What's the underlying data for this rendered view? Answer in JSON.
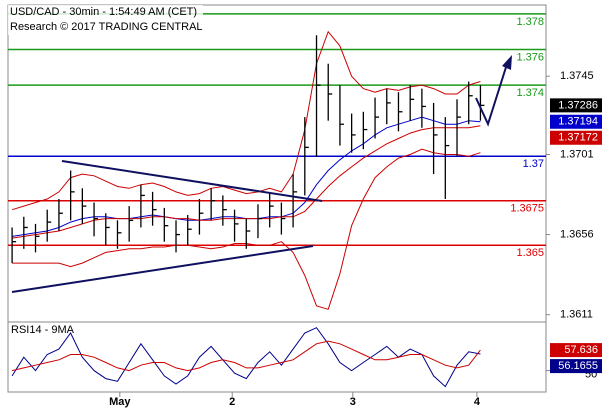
{
  "header": {
    "title": "USD/CAD - 30min - 1:54:49 AM (CET)",
    "subtitle": "Research © 2017 TRADING CENTRAL"
  },
  "chart_data": [
    {
      "type": "ohlc",
      "xlim": [
        -0.35,
        45.6
      ],
      "xticks": [
        {
          "value": 9.2,
          "label": "May"
        },
        {
          "value": 18.8,
          "label": "2"
        },
        {
          "value": 29.1,
          "label": "3"
        },
        {
          "value": 39.7,
          "label": "4"
        }
      ],
      "ylim": [
        1.3608,
        1.3785
      ],
      "yticks": [
        1.3611,
        1.3656,
        1.3701,
        1.3745
      ],
      "color": "#000000",
      "high": [
        1.366,
        1.3666,
        1.3662,
        1.367,
        1.3676,
        1.3692,
        1.3682,
        1.3674,
        1.3668,
        1.3664,
        1.3672,
        1.3684,
        1.368,
        1.3671,
        1.3664,
        1.3667,
        1.3676,
        1.3682,
        1.3678,
        1.367,
        1.3665,
        1.3673,
        1.3679,
        1.3674,
        1.369,
        1.3722,
        1.3768,
        1.3752,
        1.374,
        1.3724,
        1.3725,
        1.3733,
        1.3738,
        1.3736,
        1.374,
        1.3738,
        1.373,
        1.3722,
        1.3732,
        1.3742,
        1.374
      ],
      "low": [
        1.364,
        1.3648,
        1.3646,
        1.3652,
        1.3658,
        1.3664,
        1.3662,
        1.3655,
        1.365,
        1.3648,
        1.3652,
        1.366,
        1.3661,
        1.3652,
        1.3646,
        1.365,
        1.3656,
        1.3664,
        1.3661,
        1.3652,
        1.3648,
        1.3654,
        1.366,
        1.3656,
        1.366,
        1.3678,
        1.37,
        1.372,
        1.3706,
        1.3702,
        1.3704,
        1.371,
        1.3718,
        1.3714,
        1.372,
        1.3716,
        1.369,
        1.3676,
        1.37,
        1.3718,
        1.372
      ],
      "close": [
        1.3652,
        1.366,
        1.3655,
        1.3663,
        1.3668,
        1.368,
        1.3672,
        1.3665,
        1.366,
        1.3657,
        1.3664,
        1.3678,
        1.367,
        1.3661,
        1.3656,
        1.3659,
        1.3668,
        1.3675,
        1.367,
        1.3662,
        1.3658,
        1.3665,
        1.3672,
        1.3665,
        1.368,
        1.3705,
        1.374,
        1.3735,
        1.3718,
        1.3712,
        1.3715,
        1.3722,
        1.373,
        1.3725,
        1.3732,
        1.3728,
        1.3712,
        1.3706,
        1.3722,
        1.3734,
        1.37286
      ],
      "close_box_color": "#000000",
      "series": [
        {
          "color": "#0000cc",
          "box": true,
          "values": [
            1.3655,
            1.3656,
            1.3657,
            1.3658,
            1.366,
            1.3663,
            1.3665,
            1.3666,
            1.3666,
            1.3665,
            1.3665,
            1.3666,
            1.3667,
            1.3666,
            1.3665,
            1.3664,
            1.3664,
            1.3665,
            1.3666,
            1.3666,
            1.3665,
            1.3665,
            1.3666,
            1.3666,
            1.3668,
            1.3674,
            1.3684,
            1.3692,
            1.3698,
            1.3703,
            1.3707,
            1.3712,
            1.3716,
            1.3718,
            1.372,
            1.3722,
            1.372,
            1.3718,
            1.3718,
            1.372,
            1.37194
          ]
        },
        {
          "color": "#cc0000",
          "box": true,
          "values": [
            1.3654,
            1.3655,
            1.3656,
            1.3657,
            1.3658,
            1.366,
            1.3662,
            1.3664,
            1.3665,
            1.3665,
            1.3665,
            1.3665,
            1.3666,
            1.3666,
            1.3665,
            1.3665,
            1.3664,
            1.3664,
            1.3665,
            1.3665,
            1.3665,
            1.3665,
            1.3665,
            1.3666,
            1.3666,
            1.3669,
            1.3676,
            1.3683,
            1.3689,
            1.3694,
            1.3699,
            1.3703,
            1.3707,
            1.371,
            1.3713,
            1.3715,
            1.3716,
            1.3716,
            1.3716,
            1.3716,
            1.37172
          ]
        },
        {
          "color": "#cc0000",
          "box": false,
          "values": [
            1.367,
            1.3672,
            1.3674,
            1.3676,
            1.368,
            1.3688,
            1.369,
            1.3689,
            1.3686,
            1.3683,
            1.3682,
            1.3684,
            1.3685,
            1.3683,
            1.368,
            1.3678,
            1.3679,
            1.3682,
            1.3683,
            1.3681,
            1.3679,
            1.368,
            1.3682,
            1.368,
            1.369,
            1.3715,
            1.3752,
            1.377,
            1.3762,
            1.3745,
            1.3738,
            1.3736,
            1.3738,
            1.3737,
            1.3739,
            1.374,
            1.3738,
            1.3735,
            1.3735,
            1.374,
            1.3742
          ]
        },
        {
          "color": "#cc0000",
          "box": false,
          "values": [
            1.364,
            1.364,
            1.364,
            1.364,
            1.364,
            1.3638,
            1.364,
            1.3643,
            1.3646,
            1.3647,
            1.3648,
            1.3648,
            1.3649,
            1.3649,
            1.365,
            1.365,
            1.3649,
            1.3648,
            1.3649,
            1.3651,
            1.3651,
            1.365,
            1.365,
            1.3652,
            1.3646,
            1.3633,
            1.3616,
            1.3614,
            1.3634,
            1.3661,
            1.3676,
            1.3688,
            1.3694,
            1.3699,
            1.3701,
            1.3704,
            1.3702,
            1.3701,
            1.3701,
            1.37,
            1.3702
          ]
        }
      ],
      "levels": [
        {
          "value": 1.378,
          "color": "#1a9a1a"
        },
        {
          "value": 1.376,
          "color": "#1a9a1a"
        },
        {
          "value": 1.374,
          "color": "#1a9a1a"
        },
        {
          "value": 1.37,
          "color": "#0000cc"
        },
        {
          "value": 1.3675,
          "color": "#dd0000"
        },
        {
          "value": 1.365,
          "color": "#dd0000"
        }
      ]
    },
    {
      "type": "line",
      "title": "RSI14 - 9MA",
      "xlim": [
        -0.35,
        45.6
      ],
      "ylim": [
        42,
        67
      ],
      "yticks": [
        50
      ],
      "series": [
        {
          "color": "#00008b",
          "values": [
            48,
            55,
            50,
            56,
            58,
            64,
            55,
            50,
            47,
            46,
            53,
            60,
            54,
            48,
            45,
            48,
            55,
            59,
            54,
            49,
            47,
            53,
            57,
            52,
            58,
            64,
            66,
            60,
            53,
            50,
            53,
            56,
            59,
            55,
            58,
            56,
            48,
            44,
            52,
            57,
            56.1655
          ]
        },
        {
          "color": "#cc0000",
          "values": [
            50,
            51,
            52,
            53,
            54,
            56,
            56,
            55,
            53,
            51,
            50,
            52,
            53,
            53,
            51,
            50,
            51,
            53,
            54,
            53,
            51,
            51,
            52,
            53,
            54,
            57,
            60,
            61,
            60,
            58,
            56,
            54,
            54,
            55,
            56,
            56,
            54,
            52,
            51,
            52,
            57.636
          ]
        }
      ]
    }
  ]
}
